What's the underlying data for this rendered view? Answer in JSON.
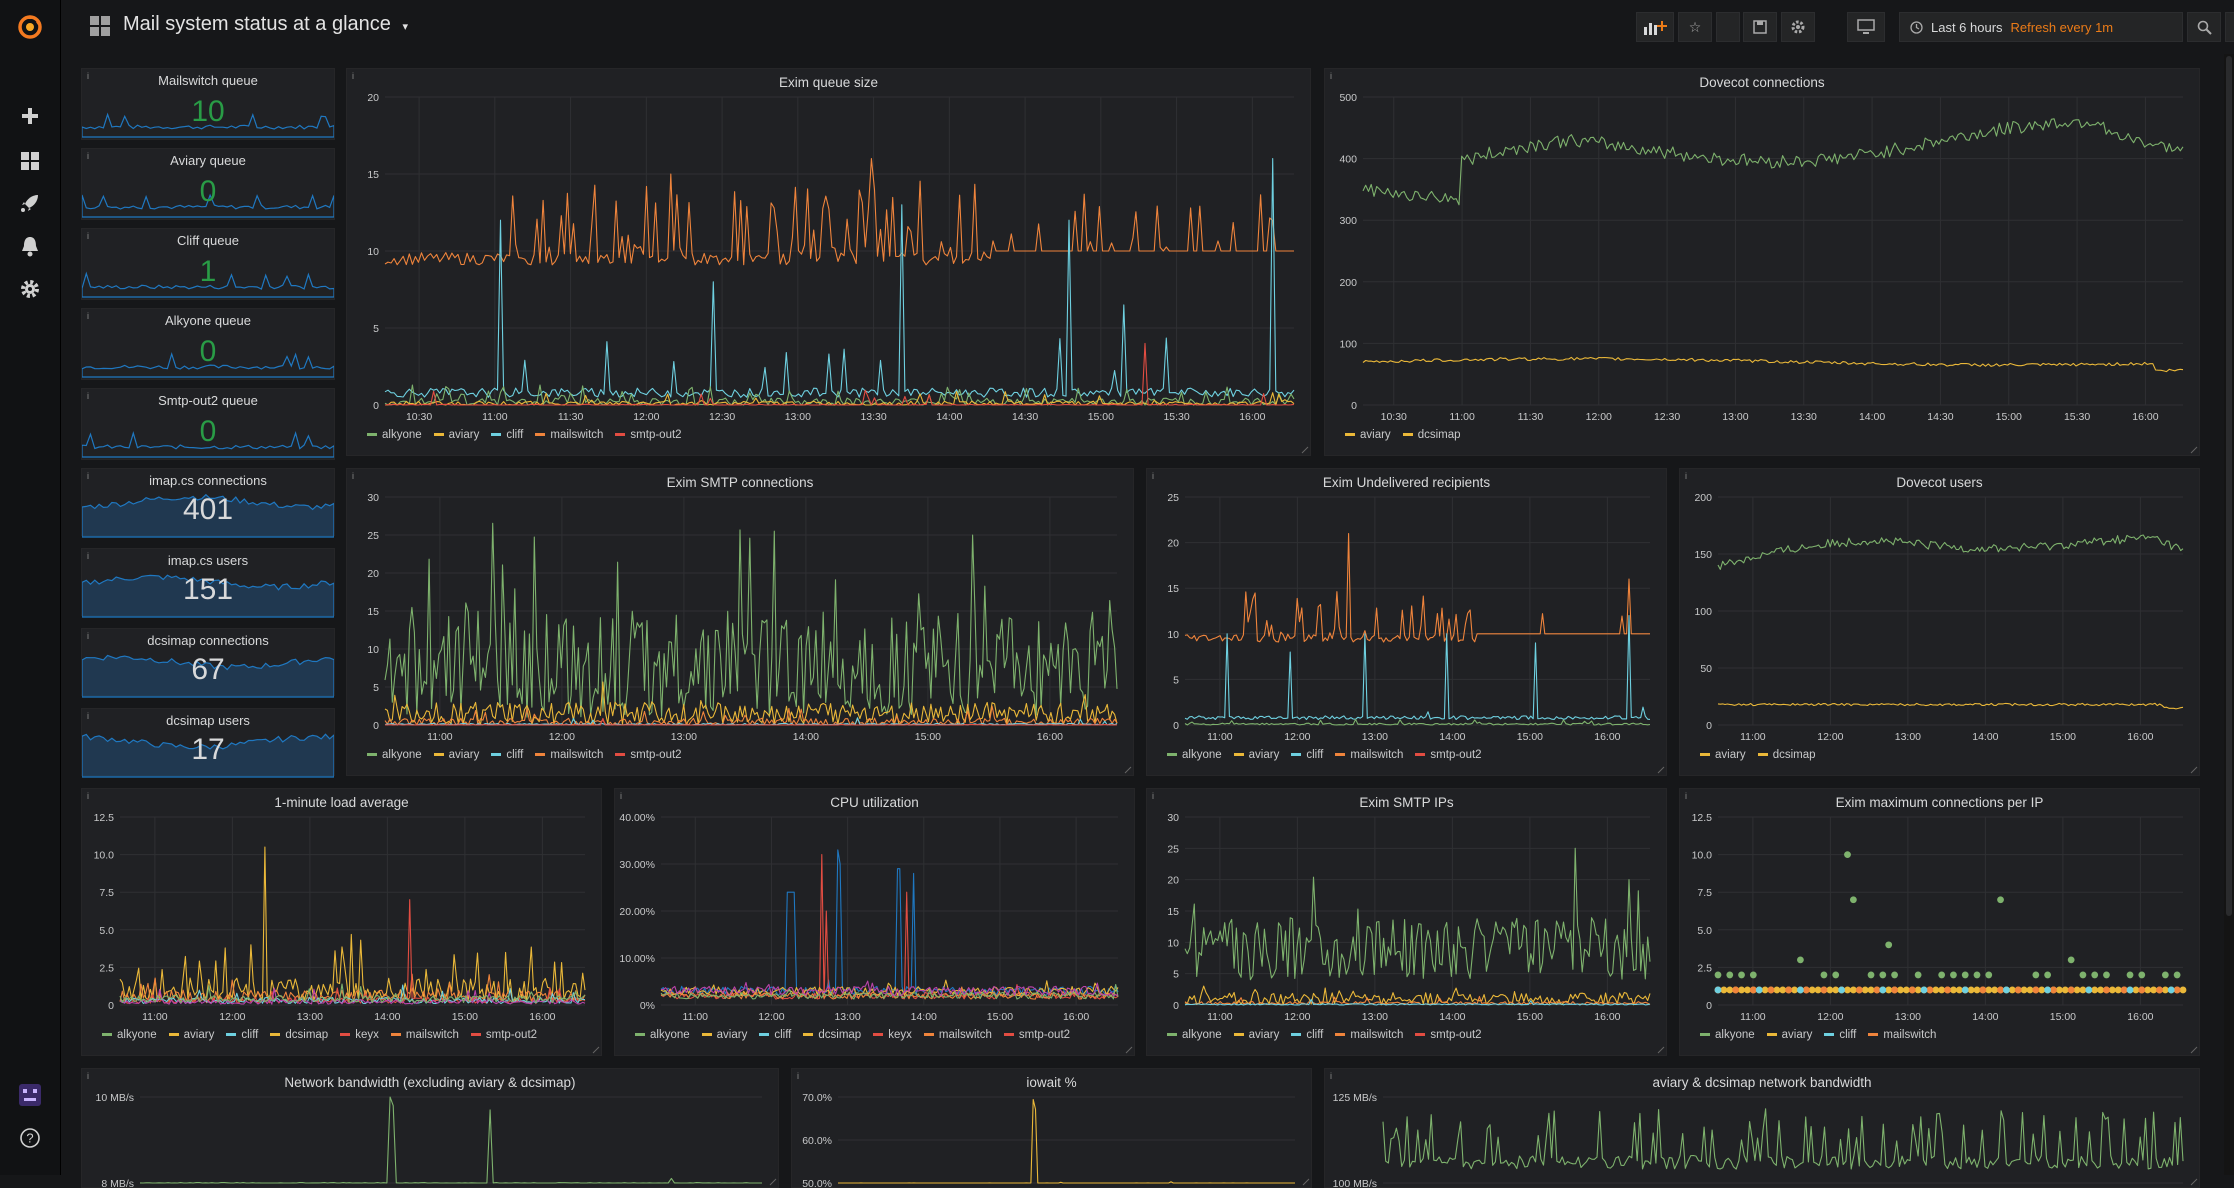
{
  "header": {
    "title": "Mail system status at a glance",
    "time_range": "Last 6 hours",
    "refresh": "Refresh every 1m"
  },
  "icons": {
    "logo": "grafana-logo-icon",
    "add": "plus-icon",
    "dashboards": "grid-icon",
    "explore": "rocket-icon",
    "alerting": "bell-icon",
    "config": "gear-icon",
    "profile": "avatar-icon",
    "help": "question-icon"
  },
  "colors": {
    "alkyone": "#7eb26d",
    "aviary": "#eab839",
    "cliff": "#6ed0e0",
    "mailswitch": "#ef843c",
    "smtp_out2": "#e24d42",
    "dcsimap": "#eab839",
    "keyx": "#e24d42",
    "cpu_blue": "#1f78c1",
    "purple": "#ba43a9",
    "singlestat_green": "#299c46",
    "refresh": "#eb7b18"
  },
  "singlestats": [
    {
      "title": "Mailswitch queue",
      "value": "10",
      "color": "#299c46"
    },
    {
      "title": "Aviary queue",
      "value": "0",
      "color": "#299c46"
    },
    {
      "title": "Cliff queue",
      "value": "1",
      "color": "#299c46"
    },
    {
      "title": "Alkyone queue",
      "value": "0",
      "color": "#299c46"
    },
    {
      "title": "Smtp-out2 queue",
      "value": "0",
      "color": "#299c46"
    },
    {
      "title": "imap.cs connections",
      "value": "401",
      "color": "#d8d9da"
    },
    {
      "title": "imap.cs users",
      "value": "151",
      "color": "#d8d9da"
    },
    {
      "title": "dcsimap connections",
      "value": "67",
      "color": "#d8d9da"
    },
    {
      "title": "dcsimap users",
      "value": "17",
      "color": "#d8d9da"
    }
  ],
  "panels": {
    "exim_queue": {
      "title": "Exim queue size",
      "yticks": [
        "20",
        "15",
        "10",
        "5",
        "0"
      ],
      "xticks": [
        "10:30",
        "11:00",
        "11:30",
        "12:00",
        "12:30",
        "13:00",
        "13:30",
        "14:00",
        "14:30",
        "15:00",
        "15:30",
        "16:00"
      ],
      "legend": [
        "alkyone",
        "aviary",
        "cliff",
        "mailswitch",
        "smtp-out2"
      ]
    },
    "dovecot_conn": {
      "title": "Dovecot connections",
      "yticks": [
        "500",
        "400",
        "300",
        "200",
        "100",
        "0"
      ],
      "xticks": [
        "10:30",
        "11:00",
        "11:30",
        "12:00",
        "12:30",
        "13:00",
        "13:30",
        "14:00",
        "14:30",
        "15:00",
        "15:30",
        "16:00"
      ],
      "legend": [
        "aviary",
        "dcsimap"
      ]
    },
    "smtp_conn": {
      "title": "Exim SMTP connections",
      "yticks": [
        "30",
        "25",
        "20",
        "15",
        "10",
        "5",
        "0"
      ],
      "xticks": [
        "11:00",
        "12:00",
        "13:00",
        "14:00",
        "15:00",
        "16:00"
      ],
      "legend": [
        "alkyone",
        "aviary",
        "cliff",
        "mailswitch",
        "smtp-out2"
      ]
    },
    "undelivered": {
      "title": "Exim Undelivered recipients",
      "yticks": [
        "25",
        "20",
        "15",
        "10",
        "5",
        "0"
      ],
      "xticks": [
        "11:00",
        "12:00",
        "13:00",
        "14:00",
        "15:00",
        "16:00"
      ],
      "legend": [
        "alkyone",
        "aviary",
        "cliff",
        "mailswitch",
        "smtp-out2"
      ]
    },
    "dovecot_users": {
      "title": "Dovecot users",
      "yticks": [
        "200",
        "150",
        "100",
        "50",
        "0"
      ],
      "xticks": [
        "11:00",
        "12:00",
        "13:00",
        "14:00",
        "15:00",
        "16:00"
      ],
      "legend": [
        "aviary",
        "dcsimap"
      ]
    },
    "load": {
      "title": "1-minute load average",
      "yticks": [
        "12.5",
        "10.0",
        "7.5",
        "5.0",
        "2.5",
        "0"
      ],
      "xticks": [
        "11:00",
        "12:00",
        "13:00",
        "14:00",
        "15:00",
        "16:00"
      ],
      "legend": [
        "alkyone",
        "aviary",
        "cliff",
        "dcsimap",
        "keyx",
        "mailswitch",
        "smtp-out2"
      ]
    },
    "cpu": {
      "title": "CPU utilization",
      "yticks": [
        "40.00%",
        "30.00%",
        "20.00%",
        "10.00%",
        "0%"
      ],
      "xticks": [
        "11:00",
        "12:00",
        "13:00",
        "14:00",
        "15:00",
        "16:00"
      ],
      "legend": [
        "alkyone",
        "aviary",
        "cliff",
        "dcsimap",
        "keyx",
        "mailswitch",
        "smtp-out2"
      ]
    },
    "smtp_ips": {
      "title": "Exim SMTP IPs",
      "yticks": [
        "30",
        "25",
        "20",
        "15",
        "10",
        "5",
        "0"
      ],
      "xticks": [
        "11:00",
        "12:00",
        "13:00",
        "14:00",
        "15:00",
        "16:00"
      ],
      "legend": [
        "alkyone",
        "aviary",
        "cliff",
        "mailswitch",
        "smtp-out2"
      ]
    },
    "max_conn": {
      "title": "Exim maximum connections per IP",
      "yticks": [
        "12.5",
        "10.0",
        "7.5",
        "5.0",
        "2.5",
        "0"
      ],
      "xticks": [
        "11:00",
        "12:00",
        "13:00",
        "14:00",
        "15:00",
        "16:00"
      ],
      "legend": [
        "alkyone",
        "aviary",
        "cliff",
        "mailswitch"
      ]
    },
    "net_bw": {
      "title": "Network bandwidth (excluding aviary & dcsimap)",
      "yticks": [
        "10 MB/s",
        "8 MB/s"
      ]
    },
    "iowait": {
      "title": "iowait %",
      "yticks": [
        "70.0%",
        "60.0%",
        "50.0%"
      ]
    },
    "av_bw": {
      "title": "aviary & dcsimap network bandwidth",
      "yticks": [
        "125 MB/s",
        "100 MB/s"
      ]
    }
  }
}
